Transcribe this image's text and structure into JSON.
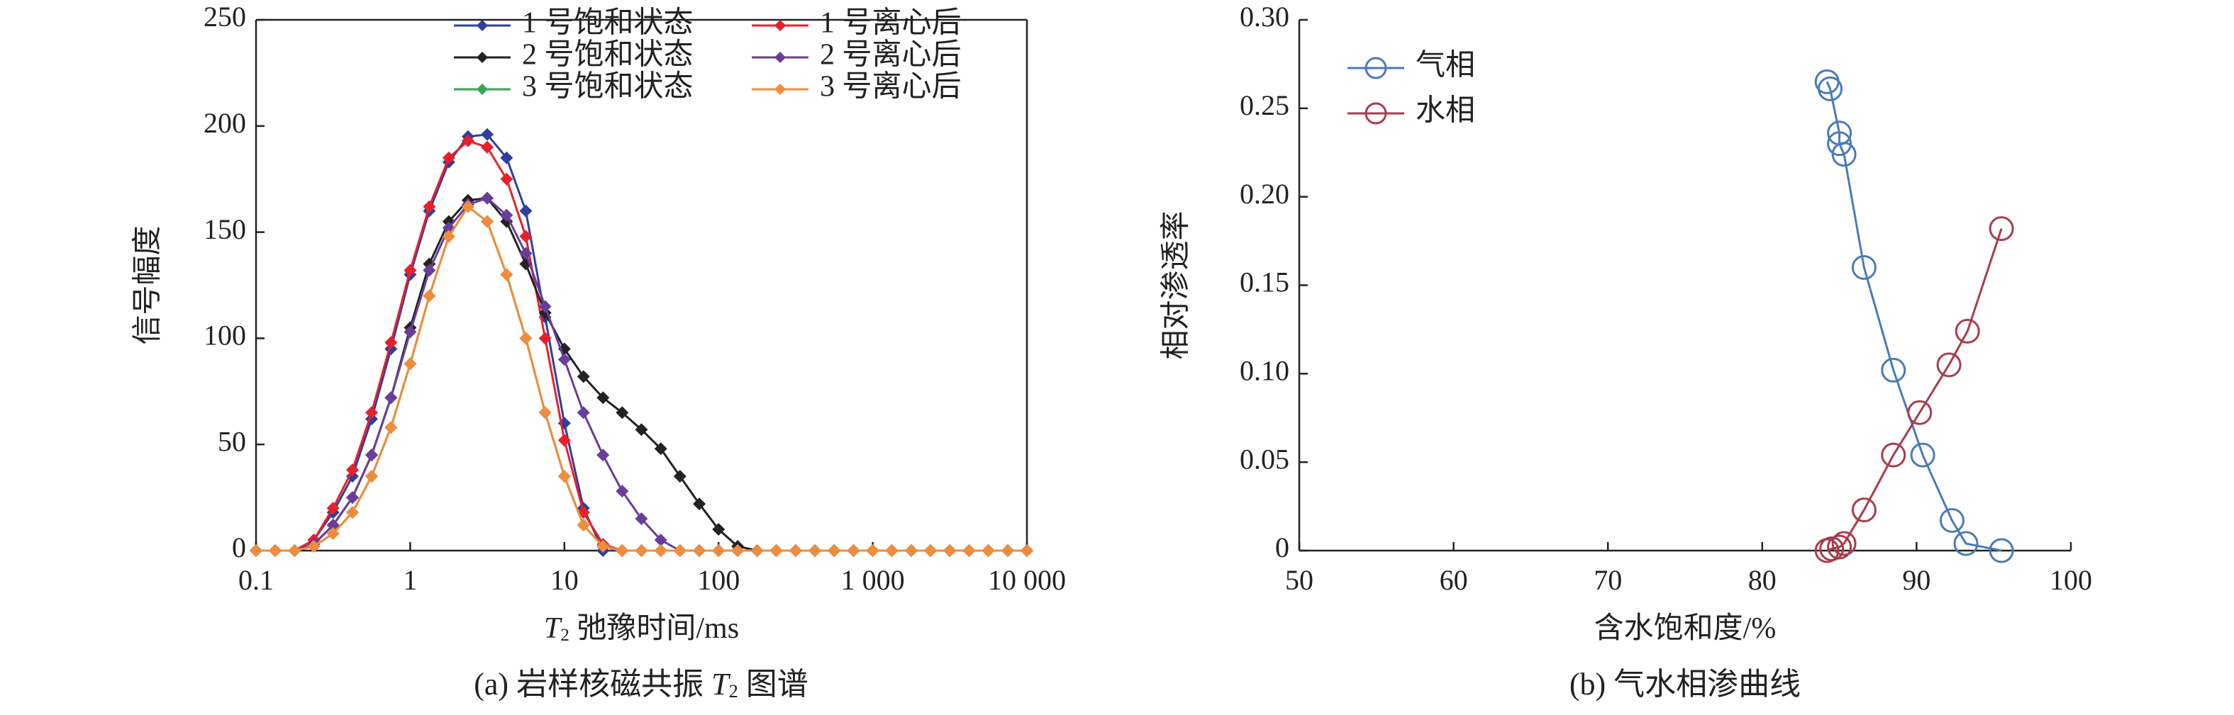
{
  "chart_data": [
    {
      "type": "line",
      "xscale": "log",
      "marker": "diamond",
      "xlabel": {
        "var": "T",
        "sub": "2",
        "text": "弛豫时间/ms"
      },
      "ylabel": "信号幅度",
      "caption": {
        "prefix": "(a) 岩样核磁共振",
        "var": "T",
        "sub": "2",
        "suffix": "图谱"
      },
      "xlim": [
        0.1,
        10000
      ],
      "ylim": [
        0,
        250
      ],
      "xticks": [
        0.1,
        1,
        10,
        100,
        {
          "value": 1000,
          "label": "1 000"
        },
        {
          "value": 10000,
          "label": "10 000"
        }
      ],
      "yticks": [
        0,
        50,
        100,
        150,
        200,
        250
      ],
      "x": [
        0.1,
        0.133,
        0.178,
        0.237,
        0.316,
        0.422,
        0.562,
        0.75,
        1,
        1.33,
        1.78,
        2.37,
        3.16,
        4.22,
        5.62,
        7.5,
        10,
        13.3,
        17.8,
        23.7,
        31.6,
        42.2,
        56.2,
        75,
        100,
        133,
        178,
        237,
        316,
        422,
        562,
        750,
        1000,
        1330,
        1780,
        2370,
        3160,
        4220,
        5620,
        7500,
        10000
      ],
      "series": [
        {
          "name": "1 号饱和状态",
          "color": "#2e3f9e",
          "values": [
            0,
            0,
            0,
            5,
            18,
            35,
            62,
            95,
            130,
            160,
            183,
            195,
            196,
            185,
            160,
            110,
            60,
            20,
            0,
            0,
            0,
            0,
            0,
            0,
            0,
            0,
            0,
            0,
            0,
            0,
            0,
            0,
            0,
            0,
            0,
            0,
            0,
            0,
            0,
            0,
            0
          ]
        },
        {
          "name": "1 号离心后",
          "color": "#e8202a",
          "values": [
            0,
            0,
            0,
            5,
            20,
            38,
            65,
            98,
            132,
            162,
            185,
            193,
            190,
            175,
            148,
            100,
            52,
            18,
            3,
            0,
            0,
            0,
            0,
            0,
            0,
            0,
            0,
            0,
            0,
            0,
            0,
            0,
            0,
            0,
            0,
            0,
            0,
            0,
            0,
            0,
            0
          ]
        },
        {
          "name": "2 号饱和状态",
          "color": "#222222",
          "values": [
            0,
            0,
            0,
            3,
            12,
            25,
            45,
            72,
            105,
            135,
            155,
            165,
            166,
            155,
            135,
            112,
            95,
            82,
            72,
            65,
            57,
            48,
            35,
            22,
            10,
            2,
            0,
            0,
            0,
            0,
            0,
            0,
            0,
            0,
            0,
            0,
            0,
            0,
            0,
            0,
            0
          ]
        },
        {
          "name": "2 号离心后",
          "color": "#6a3d9a",
          "values": [
            0,
            0,
            0,
            3,
            12,
            25,
            45,
            72,
            103,
            132,
            152,
            163,
            166,
            158,
            140,
            115,
            90,
            65,
            45,
            28,
            15,
            5,
            0,
            0,
            0,
            0,
            0,
            0,
            0,
            0,
            0,
            0,
            0,
            0,
            0,
            0,
            0,
            0,
            0,
            0,
            0
          ]
        },
        {
          "name": "3 号饱和状态",
          "color": "#3aa655",
          "values": [
            0,
            0,
            0,
            2,
            8,
            18,
            35,
            58,
            88,
            120,
            148,
            162,
            155,
            130,
            100,
            65,
            35,
            12,
            2,
            0,
            0,
            0,
            0,
            0,
            0,
            0,
            0,
            0,
            0,
            0,
            0,
            0,
            0,
            0,
            0,
            0,
            0,
            0,
            0,
            0,
            0
          ]
        },
        {
          "name": "3 号离心后",
          "color": "#f08c3c",
          "values": [
            0,
            0,
            0,
            2,
            8,
            18,
            35,
            58,
            88,
            120,
            148,
            162,
            155,
            130,
            100,
            65,
            35,
            12,
            2,
            0,
            0,
            0,
            0,
            0,
            0,
            0,
            0,
            0,
            0,
            0,
            0,
            0,
            0,
            0,
            0,
            0,
            0,
            0,
            0,
            0,
            0
          ]
        }
      ]
    },
    {
      "type": "line",
      "marker": "circle",
      "xlabel": {
        "text": "含水饱和度/%"
      },
      "ylabel": "相对渗透率",
      "caption": {
        "prefix": "(b) 气水相渗曲线"
      },
      "xlim": [
        50,
        100
      ],
      "ylim": [
        0,
        0.3
      ],
      "xticks": [
        50,
        60,
        70,
        80,
        90,
        100
      ],
      "yticks": [
        0,
        0.05,
        {
          "value": 0.1,
          "label": "0.10"
        },
        0.15,
        {
          "value": 0.2,
          "label": "0.20"
        },
        0.25,
        {
          "value": 0.3,
          "label": "0.30"
        }
      ],
      "series": [
        {
          "name": "气相",
          "color": "#4a7ab8",
          "x": [
            84.2,
            84.4,
            85.0,
            85.0,
            85.3,
            86.6,
            88.5,
            90.4,
            92.3,
            93.2,
            95.5
          ],
          "values": [
            0.265,
            0.261,
            0.236,
            0.23,
            0.224,
            0.16,
            0.102,
            0.054,
            0.017,
            0.004,
            0
          ]
        },
        {
          "name": "水相",
          "color": "#a83c4c",
          "x": [
            84.2,
            84.5,
            85.0,
            85.3,
            86.6,
            88.5,
            90.2,
            92.1,
            93.3,
            95.5
          ],
          "values": [
            0,
            0.001,
            0.002,
            0.004,
            0.023,
            0.054,
            0.078,
            0.105,
            0.124,
            0.182
          ]
        }
      ]
    }
  ]
}
